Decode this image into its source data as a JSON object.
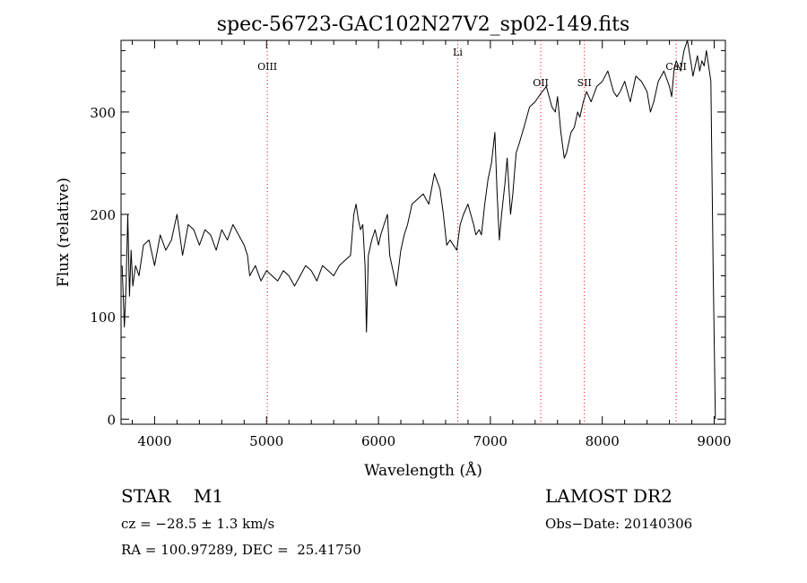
{
  "chart_data": {
    "type": "line",
    "title": "spec-56723-GAC102N27V2_sp02-149.fits",
    "xlabel": "Wavelength (Å)",
    "ylabel": "Flux (relative)",
    "xlim": [
      3700,
      9100
    ],
    "ylim": [
      -5,
      370
    ],
    "xticks": [
      4000,
      5000,
      6000,
      7000,
      8000,
      9000
    ],
    "yticks": [
      0,
      100,
      200,
      300
    ],
    "grid": false,
    "line_color": "#000000",
    "marker_color": "#ff0000",
    "lines": [
      {
        "label": "OIII",
        "x": 5007
      },
      {
        "label": "Li",
        "x": 6708
      },
      {
        "label": "OII",
        "x": 7450
      },
      {
        "label": "SII",
        "x": 7840
      },
      {
        "label": "CaII",
        "x": 8660
      }
    ],
    "series": [
      {
        "x": [
          3710,
          3730,
          3745,
          3760,
          3775,
          3790,
          3805,
          3830,
          3860,
          3900,
          3950,
          4000,
          4050,
          4100,
          4150,
          4200,
          4250,
          4300,
          4350,
          4400,
          4450,
          4500,
          4550,
          4600,
          4650,
          4700,
          4750,
          4800,
          4830,
          4850,
          4900,
          4950,
          5000,
          5050,
          5100,
          5150,
          5200,
          5250,
          5300,
          5350,
          5400,
          5450,
          5500,
          5550,
          5600,
          5650,
          5700,
          5750,
          5780,
          5800,
          5820,
          5840,
          5860,
          5880,
          5893,
          5910,
          5940,
          5970,
          6000,
          6020,
          6050,
          6080,
          6100,
          6130,
          6160,
          6200,
          6230,
          6260,
          6300,
          6350,
          6400,
          6450,
          6500,
          6550,
          6580,
          6610,
          6640,
          6670,
          6700,
          6730,
          6760,
          6800,
          6850,
          6870,
          6900,
          6920,
          6950,
          6980,
          7010,
          7040,
          7060,
          7080,
          7100,
          7130,
          7150,
          7180,
          7200,
          7230,
          7260,
          7300,
          7350,
          7400,
          7450,
          7500,
          7550,
          7580,
          7600,
          7630,
          7660,
          7680,
          7700,
          7720,
          7750,
          7780,
          7800,
          7830,
          7860,
          7900,
          7950,
          8000,
          8050,
          8100,
          8130,
          8160,
          8200,
          8250,
          8300,
          8350,
          8400,
          8430,
          8460,
          8500,
          8550,
          8600,
          8620,
          8640,
          8660,
          8680,
          8700,
          8730,
          8760,
          8790,
          8810,
          8830,
          8850,
          8870,
          8890,
          8910,
          8930,
          8950,
          8970,
          8990,
          9010
        ],
        "y": [
          150,
          90,
          130,
          200,
          120,
          165,
          130,
          150,
          140,
          170,
          175,
          150,
          180,
          165,
          175,
          200,
          160,
          190,
          185,
          170,
          185,
          180,
          165,
          185,
          175,
          190,
          180,
          170,
          160,
          140,
          150,
          135,
          145,
          140,
          135,
          145,
          140,
          130,
          140,
          150,
          145,
          135,
          150,
          145,
          140,
          150,
          155,
          160,
          200,
          210,
          195,
          185,
          190,
          150,
          85,
          160,
          175,
          185,
          170,
          180,
          190,
          200,
          160,
          145,
          130,
          165,
          180,
          190,
          210,
          215,
          220,
          210,
          240,
          225,
          200,
          170,
          175,
          170,
          165,
          190,
          200,
          210,
          190,
          180,
          185,
          180,
          210,
          235,
          250,
          280,
          220,
          175,
          200,
          230,
          255,
          200,
          220,
          260,
          270,
          285,
          305,
          310,
          318,
          325,
          305,
          300,
          315,
          280,
          255,
          260,
          270,
          280,
          285,
          300,
          295,
          310,
          320,
          310,
          325,
          330,
          340,
          320,
          315,
          320,
          330,
          310,
          335,
          330,
          320,
          300,
          310,
          330,
          340,
          325,
          315,
          340,
          350,
          345,
          340,
          360,
          370,
          350,
          335,
          345,
          355,
          340,
          350,
          345,
          360,
          345,
          330,
          150,
          0
        ]
      }
    ]
  },
  "info": {
    "object": "STAR    M1",
    "survey": "LAMOST DR2",
    "cz": "cz = −28.5 ± 1.3 km/s",
    "obs_date": "Obs−Date: 20140306",
    "coords": "RA = 100.97289, DEC =  25.41750"
  }
}
